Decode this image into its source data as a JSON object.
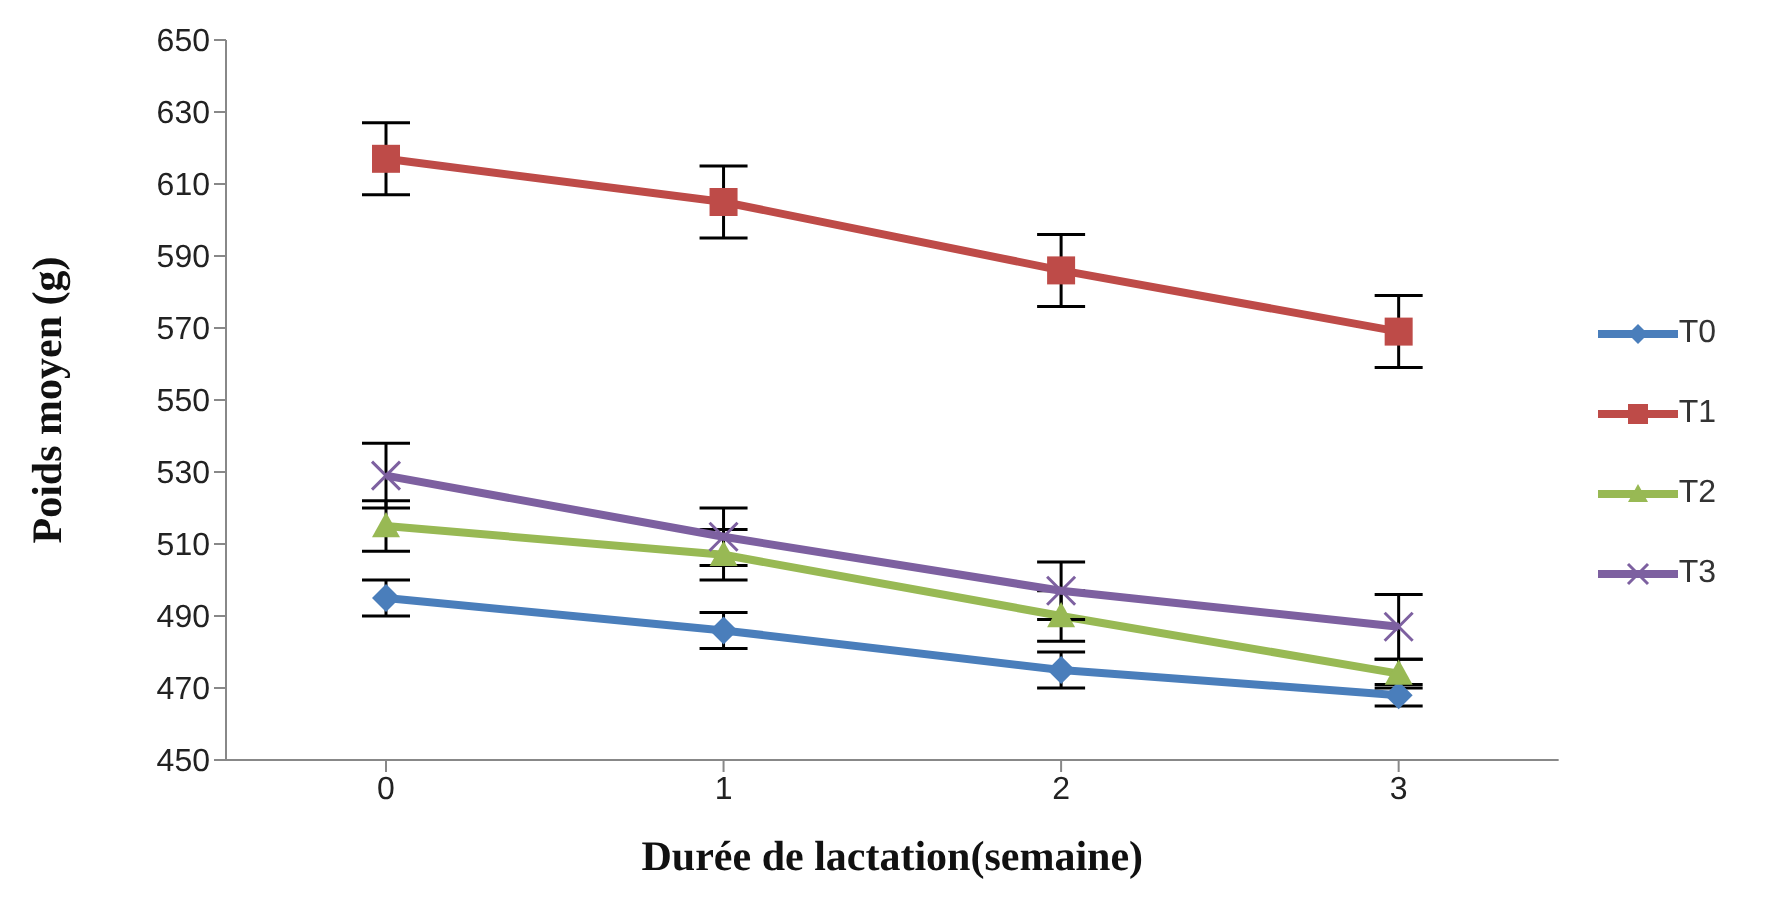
{
  "chart_data": {
    "type": "line",
    "xlabel": "Durée de lactation(semaine)",
    "ylabel": "Poids moyen (g)",
    "categories": [
      "0",
      "1",
      "2",
      "3"
    ],
    "series": [
      {
        "name": "T0",
        "color": "#4a7ebb",
        "marker": "diamond",
        "values": [
          495,
          486,
          475,
          468
        ],
        "errors": [
          5,
          5,
          5,
          3
        ]
      },
      {
        "name": "T1",
        "color": "#be4b48",
        "marker": "square",
        "values": [
          617,
          605,
          586,
          569
        ],
        "errors": [
          10,
          10,
          10,
          10
        ]
      },
      {
        "name": "T2",
        "color": "#98b954",
        "marker": "triangle",
        "values": [
          515,
          507,
          490,
          474
        ],
        "errors": [
          7,
          7,
          7,
          4
        ]
      },
      {
        "name": "T3",
        "color": "#7d60a0",
        "marker": "cross",
        "values": [
          529,
          512,
          497,
          487
        ],
        "errors": [
          9,
          8,
          8,
          9
        ]
      }
    ],
    "ylim": [
      450,
      650
    ],
    "yticks": [
      450,
      470,
      490,
      510,
      530,
      550,
      570,
      590,
      610,
      630,
      650
    ],
    "legend": "right"
  }
}
